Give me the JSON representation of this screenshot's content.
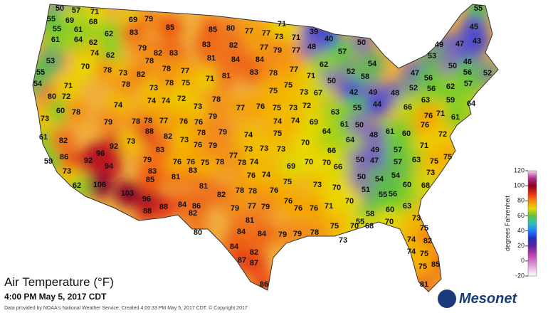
{
  "map": {
    "title": "Air Temperature (°F)",
    "subtitle": "4:00 PM May 5, 2017 CDT",
    "credit": "Data provided by NOAA's National Weather Service. Created 4:00:33 PM May 5, 2017 CDT. © Copyright 2017",
    "logo": "Mesonet",
    "stations": [
      50,
      57,
      71,
      55,
      69,
      68,
      69,
      79,
      55,
      61,
      83,
      85,
      85,
      80,
      77,
      77,
      73,
      71,
      71,
      39,
      40,
      50,
      55,
      45,
      49,
      47,
      43,
      61,
      64,
      62,
      62,
      79,
      82,
      83,
      81,
      84,
      84,
      83,
      82,
      77,
      79,
      77,
      48,
      57,
      52,
      58,
      54,
      53,
      53,
      74,
      62,
      55,
      70,
      78,
      73,
      82,
      78,
      78,
      77,
      54,
      71,
      78,
      73,
      78,
      75,
      80,
      72,
      74,
      74,
      72,
      71,
      81,
      83,
      78,
      77,
      71,
      62,
      50,
      75,
      75,
      73,
      67,
      42,
      49,
      48,
      55,
      44,
      47,
      50,
      46,
      56,
      52,
      56,
      57,
      52,
      56,
      62,
      59,
      64,
      63,
      66,
      71,
      61,
      76,
      61,
      60,
      48,
      76,
      72,
      64,
      66,
      49,
      57,
      71,
      63,
      75,
      75,
      50,
      47,
      57,
      54,
      60,
      73,
      68,
      50,
      54,
      51,
      56,
      55,
      63,
      60,
      58,
      70,
      66,
      70,
      70,
      73,
      70,
      71,
      55,
      70,
      68,
      70,
      73,
      75,
      74,
      82,
      74,
      75,
      85,
      75,
      81,
      75,
      73,
      78,
      79,
      79,
      84,
      84,
      84,
      82,
      87,
      87,
      86,
      80,
      86,
      84,
      82,
      88,
      88,
      96,
      103,
      106,
      62,
      73,
      86,
      59,
      92,
      96,
      94,
      92,
      73,
      79,
      83,
      83,
      85,
      81,
      83,
      81,
      82,
      78,
      78,
      76,
      74,
      76,
      76,
      75,
      79,
      77,
      79,
      81,
      76,
      76,
      61,
      82,
      73,
      60,
      78,
      74,
      79,
      78,
      78,
      88,
      82,
      77,
      76,
      76,
      79,
      73,
      78,
      77,
      76,
      75,
      73,
      72,
      74,
      74,
      78,
      79,
      74,
      75,
      70,
      73,
      73,
      73,
      77,
      78,
      75,
      76,
      76,
      73,
      76,
      79,
      78,
      74,
      69,
      63,
      61,
      64,
      69,
      50
    ],
    "colorbar": {
      "label": "degrees Fahrenheit",
      "lim": [
        -20,
        120
      ],
      "ticks": [
        120,
        100,
        80,
        60,
        40,
        20,
        0,
        -20
      ]
    }
  }
}
